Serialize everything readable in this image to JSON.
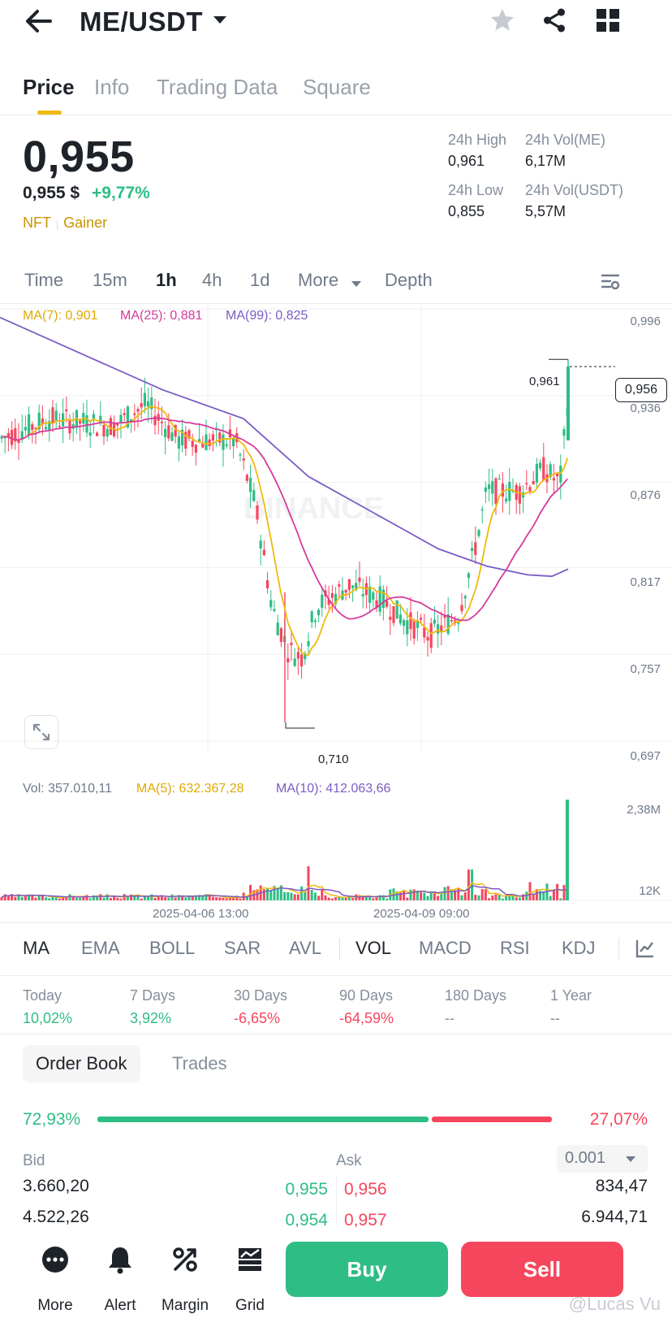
{
  "header": {
    "pair": "ME/USDT",
    "icons": [
      "back-arrow-icon",
      "dropdown-caret-icon",
      "star-icon",
      "share-icon",
      "grid-icon"
    ]
  },
  "tabs": [
    "Price",
    "Info",
    "Trading Data",
    "Square"
  ],
  "price": {
    "last": "0,955",
    "usd": "0,955 $",
    "change": "+9,77%",
    "tag1": "NFT",
    "tag2": "Gainer"
  },
  "stats": {
    "high_label": "24h High",
    "high_value": "0,961",
    "low_label": "24h Low",
    "low_value": "0,855",
    "vol_me_label": "24h Vol(ME)",
    "vol_me_value": "6,17M",
    "vol_usdt_label": "24h Vol(USDT)",
    "vol_usdt_value": "5,57M"
  },
  "intervals": [
    "Time",
    "15m",
    "1h",
    "4h",
    "1d",
    "More",
    "Depth"
  ],
  "chart_legend": {
    "ma7": "MA(7): 0,901",
    "ma25": "MA(25): 0,881",
    "ma99": "MA(99): 0,825"
  },
  "chart_data": {
    "type": "candlestick",
    "y_ticks": [
      "0,996",
      "0,936",
      "0,876",
      "0,817",
      "0,757",
      "0,697"
    ],
    "ylim": [
      0.697,
      0.996
    ],
    "x_ticks": [
      "2025-04-06 13:00",
      "2025-04-09 09:00"
    ],
    "high_marker": "0,961",
    "low_marker": "0,710",
    "current_price_label": "0,956",
    "watermark": "BINANCE",
    "colors": {
      "up": "#2ebd85",
      "down": "#f6465d",
      "ma7": "#f0b90b",
      "ma25": "#d63a9c",
      "ma99": "#7b5cc4"
    }
  },
  "volume": {
    "vol": "Vol: 357.010,11",
    "ma5": "MA(5): 632.367,28",
    "ma10": "MA(10): 412.063,66",
    "top_tick": "2,38M",
    "bottom_tick": "12K"
  },
  "indicators": [
    "MA",
    "EMA",
    "BOLL",
    "SAR",
    "AVL",
    "VOL",
    "MACD",
    "RSI",
    "KDJ"
  ],
  "performance": [
    {
      "label": "Today",
      "value": "10,02%"
    },
    {
      "label": "7 Days",
      "value": "3,92%"
    },
    {
      "label": "30 Days",
      "value": "-6,65%"
    },
    {
      "label": "90 Days",
      "value": "-64,59%"
    },
    {
      "label": "180 Days",
      "value": "--"
    },
    {
      "label": "1 Year",
      "value": "--"
    }
  ],
  "orderbook": {
    "tab_active": "Order Book",
    "tab_other": "Trades",
    "buy_pct": "72,93%",
    "sell_pct": "27,07%",
    "buy_ratio": 0.7293,
    "bid_label": "Bid",
    "ask_label": "Ask",
    "precision": "0.001",
    "rows": [
      {
        "bid_qty": "3.660,20",
        "bid_price": "0,955",
        "ask_price": "0,956",
        "ask_qty": "834,47"
      },
      {
        "bid_qty": "4.522,26",
        "bid_price": "0,954",
        "ask_price": "0,957",
        "ask_qty": "6.944,71"
      }
    ]
  },
  "bottom_nav": {
    "more": "More",
    "alert": "Alert",
    "margin": "Margin",
    "grid": "Grid",
    "buy": "Buy",
    "sell": "Sell"
  },
  "watermark": "@Lucas Vu"
}
